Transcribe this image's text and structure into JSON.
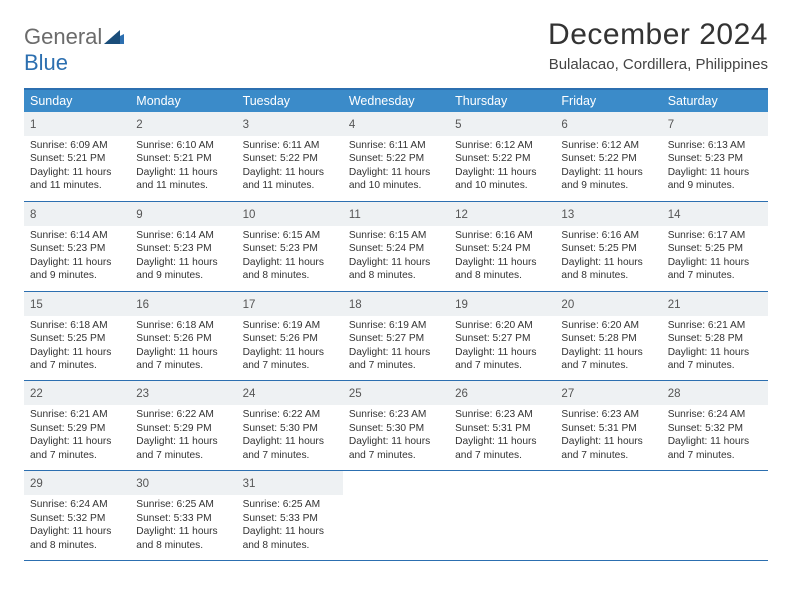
{
  "brand": {
    "text1": "General",
    "text2": "Blue"
  },
  "title": "December 2024",
  "location": "Bulalacao, Cordillera, Philippines",
  "colors": {
    "accent": "#2c6fb0",
    "headerbar": "#3b8bc9",
    "daynum_bg": "#eef1f3",
    "text": "#333333",
    "muted": "#555555"
  },
  "days_of_week": [
    "Sunday",
    "Monday",
    "Tuesday",
    "Wednesday",
    "Thursday",
    "Friday",
    "Saturday"
  ],
  "weeks": [
    [
      {
        "n": "1",
        "sr": "Sunrise: 6:09 AM",
        "ss": "Sunset: 5:21 PM",
        "d1": "Daylight: 11 hours",
        "d2": "and 11 minutes."
      },
      {
        "n": "2",
        "sr": "Sunrise: 6:10 AM",
        "ss": "Sunset: 5:21 PM",
        "d1": "Daylight: 11 hours",
        "d2": "and 11 minutes."
      },
      {
        "n": "3",
        "sr": "Sunrise: 6:11 AM",
        "ss": "Sunset: 5:22 PM",
        "d1": "Daylight: 11 hours",
        "d2": "and 11 minutes."
      },
      {
        "n": "4",
        "sr": "Sunrise: 6:11 AM",
        "ss": "Sunset: 5:22 PM",
        "d1": "Daylight: 11 hours",
        "d2": "and 10 minutes."
      },
      {
        "n": "5",
        "sr": "Sunrise: 6:12 AM",
        "ss": "Sunset: 5:22 PM",
        "d1": "Daylight: 11 hours",
        "d2": "and 10 minutes."
      },
      {
        "n": "6",
        "sr": "Sunrise: 6:12 AM",
        "ss": "Sunset: 5:22 PM",
        "d1": "Daylight: 11 hours",
        "d2": "and 9 minutes."
      },
      {
        "n": "7",
        "sr": "Sunrise: 6:13 AM",
        "ss": "Sunset: 5:23 PM",
        "d1": "Daylight: 11 hours",
        "d2": "and 9 minutes."
      }
    ],
    [
      {
        "n": "8",
        "sr": "Sunrise: 6:14 AM",
        "ss": "Sunset: 5:23 PM",
        "d1": "Daylight: 11 hours",
        "d2": "and 9 minutes."
      },
      {
        "n": "9",
        "sr": "Sunrise: 6:14 AM",
        "ss": "Sunset: 5:23 PM",
        "d1": "Daylight: 11 hours",
        "d2": "and 9 minutes."
      },
      {
        "n": "10",
        "sr": "Sunrise: 6:15 AM",
        "ss": "Sunset: 5:23 PM",
        "d1": "Daylight: 11 hours",
        "d2": "and 8 minutes."
      },
      {
        "n": "11",
        "sr": "Sunrise: 6:15 AM",
        "ss": "Sunset: 5:24 PM",
        "d1": "Daylight: 11 hours",
        "d2": "and 8 minutes."
      },
      {
        "n": "12",
        "sr": "Sunrise: 6:16 AM",
        "ss": "Sunset: 5:24 PM",
        "d1": "Daylight: 11 hours",
        "d2": "and 8 minutes."
      },
      {
        "n": "13",
        "sr": "Sunrise: 6:16 AM",
        "ss": "Sunset: 5:25 PM",
        "d1": "Daylight: 11 hours",
        "d2": "and 8 minutes."
      },
      {
        "n": "14",
        "sr": "Sunrise: 6:17 AM",
        "ss": "Sunset: 5:25 PM",
        "d1": "Daylight: 11 hours",
        "d2": "and 7 minutes."
      }
    ],
    [
      {
        "n": "15",
        "sr": "Sunrise: 6:18 AM",
        "ss": "Sunset: 5:25 PM",
        "d1": "Daylight: 11 hours",
        "d2": "and 7 minutes."
      },
      {
        "n": "16",
        "sr": "Sunrise: 6:18 AM",
        "ss": "Sunset: 5:26 PM",
        "d1": "Daylight: 11 hours",
        "d2": "and 7 minutes."
      },
      {
        "n": "17",
        "sr": "Sunrise: 6:19 AM",
        "ss": "Sunset: 5:26 PM",
        "d1": "Daylight: 11 hours",
        "d2": "and 7 minutes."
      },
      {
        "n": "18",
        "sr": "Sunrise: 6:19 AM",
        "ss": "Sunset: 5:27 PM",
        "d1": "Daylight: 11 hours",
        "d2": "and 7 minutes."
      },
      {
        "n": "19",
        "sr": "Sunrise: 6:20 AM",
        "ss": "Sunset: 5:27 PM",
        "d1": "Daylight: 11 hours",
        "d2": "and 7 minutes."
      },
      {
        "n": "20",
        "sr": "Sunrise: 6:20 AM",
        "ss": "Sunset: 5:28 PM",
        "d1": "Daylight: 11 hours",
        "d2": "and 7 minutes."
      },
      {
        "n": "21",
        "sr": "Sunrise: 6:21 AM",
        "ss": "Sunset: 5:28 PM",
        "d1": "Daylight: 11 hours",
        "d2": "and 7 minutes."
      }
    ],
    [
      {
        "n": "22",
        "sr": "Sunrise: 6:21 AM",
        "ss": "Sunset: 5:29 PM",
        "d1": "Daylight: 11 hours",
        "d2": "and 7 minutes."
      },
      {
        "n": "23",
        "sr": "Sunrise: 6:22 AM",
        "ss": "Sunset: 5:29 PM",
        "d1": "Daylight: 11 hours",
        "d2": "and 7 minutes."
      },
      {
        "n": "24",
        "sr": "Sunrise: 6:22 AM",
        "ss": "Sunset: 5:30 PM",
        "d1": "Daylight: 11 hours",
        "d2": "and 7 minutes."
      },
      {
        "n": "25",
        "sr": "Sunrise: 6:23 AM",
        "ss": "Sunset: 5:30 PM",
        "d1": "Daylight: 11 hours",
        "d2": "and 7 minutes."
      },
      {
        "n": "26",
        "sr": "Sunrise: 6:23 AM",
        "ss": "Sunset: 5:31 PM",
        "d1": "Daylight: 11 hours",
        "d2": "and 7 minutes."
      },
      {
        "n": "27",
        "sr": "Sunrise: 6:23 AM",
        "ss": "Sunset: 5:31 PM",
        "d1": "Daylight: 11 hours",
        "d2": "and 7 minutes."
      },
      {
        "n": "28",
        "sr": "Sunrise: 6:24 AM",
        "ss": "Sunset: 5:32 PM",
        "d1": "Daylight: 11 hours",
        "d2": "and 7 minutes."
      }
    ],
    [
      {
        "n": "29",
        "sr": "Sunrise: 6:24 AM",
        "ss": "Sunset: 5:32 PM",
        "d1": "Daylight: 11 hours",
        "d2": "and 8 minutes."
      },
      {
        "n": "30",
        "sr": "Sunrise: 6:25 AM",
        "ss": "Sunset: 5:33 PM",
        "d1": "Daylight: 11 hours",
        "d2": "and 8 minutes."
      },
      {
        "n": "31",
        "sr": "Sunrise: 6:25 AM",
        "ss": "Sunset: 5:33 PM",
        "d1": "Daylight: 11 hours",
        "d2": "and 8 minutes."
      },
      null,
      null,
      null,
      null
    ]
  ]
}
